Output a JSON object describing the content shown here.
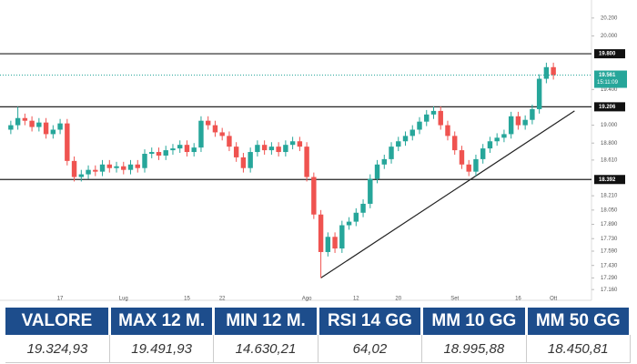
{
  "chart_data": {
    "type": "candlestick",
    "categories": [
      null,
      null,
      null,
      null,
      null,
      null,
      null,
      "17",
      null,
      null,
      null,
      null,
      null,
      null,
      null,
      null,
      "Lug",
      null,
      null,
      null,
      null,
      null,
      null,
      null,
      null,
      "15",
      null,
      null,
      null,
      null,
      "22",
      null,
      null,
      null,
      null,
      null,
      null,
      null,
      null,
      null,
      null,
      null,
      "Ago",
      null,
      null,
      null,
      null,
      null,
      null,
      "12",
      null,
      null,
      null,
      null,
      null,
      "20",
      null,
      null,
      null,
      null,
      null,
      null,
      null,
      "Set",
      null,
      null,
      null,
      null,
      null,
      null,
      null,
      null,
      "16",
      null,
      null,
      null,
      null,
      "Ott"
    ],
    "open": [
      18950,
      19000,
      19080,
      19050,
      18980,
      19030,
      18900,
      18950,
      19020,
      18600,
      18420,
      18450,
      18500,
      18480,
      18560,
      18520,
      18540,
      18500,
      18560,
      18520,
      18680,
      18700,
      18660,
      18720,
      18740,
      18780,
      18700,
      18750,
      19050,
      19000,
      18920,
      18880,
      18760,
      18640,
      18520,
      18700,
      18780,
      18720,
      18760,
      18700,
      18780,
      18820,
      18760,
      18420,
      18000,
      17580,
      17750,
      17620,
      17880,
      17920,
      18020,
      18120,
      18400,
      18560,
      18620,
      18760,
      18820,
      18880,
      18950,
      19040,
      19120,
      19160,
      19000,
      18880,
      18720,
      18560,
      18480,
      18620,
      18740,
      18820,
      18860,
      18900,
      19100,
      19000,
      19060,
      19180,
      19520,
      19650
    ],
    "high": [
      19050,
      19206,
      19130,
      19100,
      19080,
      19080,
      19000,
      19070,
      19070,
      18650,
      18500,
      18550,
      18550,
      18610,
      18610,
      18590,
      18590,
      18610,
      18610,
      18730,
      18750,
      18750,
      18770,
      18790,
      18830,
      18830,
      18800,
      19100,
      19100,
      19050,
      18970,
      18930,
      18810,
      18690,
      18750,
      18830,
      18830,
      18810,
      18810,
      18830,
      18870,
      18870,
      18810,
      18470,
      18050,
      17800,
      17800,
      17930,
      17970,
      18070,
      18170,
      18450,
      18610,
      18670,
      18810,
      18870,
      18930,
      19000,
      19090,
      19170,
      19210,
      19210,
      19050,
      18930,
      18770,
      18610,
      18670,
      18790,
      18870,
      18910,
      18950,
      19150,
      19150,
      19110,
      19230,
      19570,
      19700,
      19700
    ],
    "low": [
      18900,
      18950,
      19000,
      18930,
      18930,
      18850,
      18850,
      18900,
      18550,
      18370,
      18370,
      18400,
      18430,
      18430,
      18470,
      18470,
      18450,
      18450,
      18470,
      18470,
      18630,
      18610,
      18610,
      18670,
      18690,
      18650,
      18650,
      18700,
      18950,
      18870,
      18830,
      18710,
      18590,
      18470,
      18470,
      18650,
      18670,
      18670,
      18650,
      18650,
      18730,
      18710,
      18370,
      17950,
      17290,
      17530,
      17570,
      17570,
      17830,
      17870,
      17970,
      18070,
      18350,
      18510,
      18570,
      18710,
      18770,
      18830,
      18900,
      18990,
      19070,
      18950,
      18830,
      18670,
      18510,
      18430,
      18430,
      18570,
      18690,
      18770,
      18810,
      18850,
      18950,
      18950,
      19010,
      19130,
      19470,
      19511
    ],
    "close": [
      19000,
      19080,
      19050,
      18980,
      19030,
      18900,
      18950,
      19020,
      18600,
      18420,
      18450,
      18500,
      18480,
      18560,
      18520,
      18540,
      18500,
      18560,
      18520,
      18680,
      18700,
      18660,
      18720,
      18740,
      18780,
      18700,
      18750,
      19050,
      19000,
      18920,
      18880,
      18760,
      18640,
      18520,
      18700,
      18780,
      18720,
      18760,
      18700,
      18780,
      18820,
      18760,
      18420,
      18000,
      17580,
      17750,
      17620,
      17880,
      17920,
      18020,
      18120,
      18400,
      18560,
      18620,
      18760,
      18820,
      18880,
      18950,
      19040,
      19120,
      19160,
      19000,
      18880,
      18720,
      18560,
      18480,
      18620,
      18740,
      18820,
      18860,
      18900,
      19100,
      19000,
      19060,
      19180,
      19520,
      19650,
      19561
    ],
    "up_color": "#26a69a",
    "down_color": "#ef5350",
    "ylim": [
      17060,
      20300
    ],
    "yticks": [
      {
        "value": 20200,
        "label": "20.200"
      },
      {
        "value": 20000,
        "label": "20.000"
      },
      {
        "value": 19400,
        "label": "19.400"
      },
      {
        "value": 19000,
        "label": "19.000"
      },
      {
        "value": 18800,
        "label": "18.800"
      },
      {
        "value": 18610,
        "label": "18.610"
      },
      {
        "value": 18210,
        "label": "18.210"
      },
      {
        "value": 18050,
        "label": "18.050"
      },
      {
        "value": 17890,
        "label": "17.890"
      },
      {
        "value": 17730,
        "label": "17.730"
      },
      {
        "value": 17590,
        "label": "17.590"
      },
      {
        "value": 17430,
        "label": "17.430"
      },
      {
        "value": 17290,
        "label": "17.290"
      },
      {
        "value": 17160,
        "label": "17.160"
      }
    ],
    "levels": [
      {
        "value": 19800,
        "label": "19.800"
      },
      {
        "value": 19206,
        "label": "19.206"
      },
      {
        "value": 18392,
        "label": "18.392"
      }
    ],
    "last_price": {
      "value": 19561,
      "label": "19.561",
      "countdown": "15:11:09"
    },
    "trendline": {
      "x": [
        44,
        80
      ],
      "y": [
        17290,
        19160
      ]
    }
  },
  "table": {
    "headers": [
      "VALORE",
      "MAX 12 M.",
      "MIN 12 M.",
      "RSI 14 GG",
      "MM 10 GG",
      "MM 50 GG"
    ],
    "values": [
      "19.324,93",
      "19.491,93",
      "14.630,21",
      "64,02",
      "18.995,88",
      "18.450,81"
    ]
  }
}
